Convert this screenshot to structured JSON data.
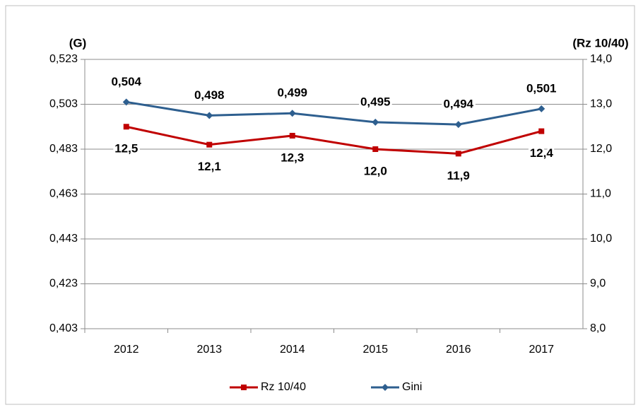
{
  "chart_data": {
    "type": "line",
    "y_label": "(G)",
    "y2_label": "(Rz 10/40)",
    "categories": [
      "2012",
      "2013",
      "2014",
      "2015",
      "2016",
      "2017"
    ],
    "series": [
      {
        "name": "Rz 10/40",
        "color": "#c00000",
        "marker": "square",
        "axis": "y2",
        "values": [
          12.5,
          12.1,
          12.3,
          12.0,
          11.9,
          12.4
        ],
        "value_labels": [
          "12,5",
          "12,1",
          "12,3",
          "12,0",
          "11,9",
          "12,4"
        ]
      },
      {
        "name": "Gini",
        "color": "#2e5f8f",
        "marker": "diamond",
        "values": [
          0.504,
          0.498,
          0.499,
          0.495,
          0.494,
          0.501
        ],
        "value_labels": [
          "0,504",
          "0,498",
          "0,499",
          "0,495",
          "0,494",
          "0,501"
        ]
      }
    ],
    "ylim": [
      0.403,
      0.523
    ],
    "yticks": [
      {
        "value": 0.403,
        "label": "0,403"
      },
      {
        "value": 0.423,
        "label": "0,423"
      },
      {
        "value": 0.443,
        "label": "0,443"
      },
      {
        "value": 0.463,
        "label": "0,463"
      },
      {
        "value": 0.483,
        "label": "0,483"
      },
      {
        "value": 0.503,
        "label": "0,503"
      },
      {
        "value": 0.523,
        "label": "0,523"
      }
    ],
    "y2lim": [
      8,
      14
    ],
    "y2ticks": [
      {
        "value": 8,
        "label": "8,0"
      },
      {
        "value": 9,
        "label": "9,0"
      },
      {
        "value": 10,
        "label": "10,0"
      },
      {
        "value": 11,
        "label": "11,0"
      },
      {
        "value": 12,
        "label": "12,0"
      },
      {
        "value": 13,
        "label": "13,0"
      },
      {
        "value": 14,
        "label": "14,0"
      }
    ],
    "grid": true,
    "legend": "bottom"
  }
}
